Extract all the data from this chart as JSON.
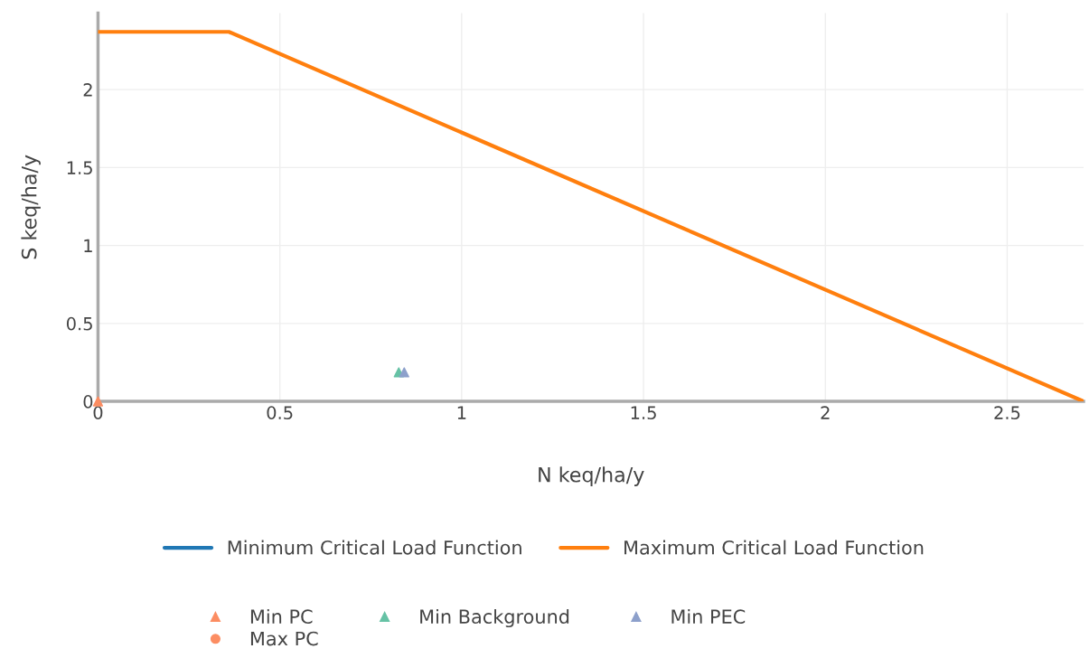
{
  "chart_data": {
    "type": "line",
    "xlabel": "N keq/ha/y",
    "ylabel": "S keq/ha/y",
    "xlim": [
      0,
      2.71
    ],
    "ylim": [
      0,
      2.49
    ],
    "xticks": [
      0,
      0.5,
      1,
      1.5,
      2,
      2.5
    ],
    "yticks": [
      0,
      0.5,
      1,
      1.5,
      2
    ],
    "grid": true,
    "legend": "bottom",
    "series": [
      {
        "name": "Minimum Critical Load Function",
        "color": "#1f77b4"
      },
      {
        "name": "Maximum Critical Load Function",
        "color": "#ff7f0e",
        "x": [
          0,
          0.36,
          2.71
        ],
        "values": [
          2.37,
          2.37,
          0
        ]
      },
      {
        "name": "Min PC",
        "type": "scatter",
        "marker": "triangle",
        "color": "#fc8d62",
        "x": [
          0
        ],
        "values": [
          0
        ]
      },
      {
        "name": "Min Background",
        "type": "scatter",
        "marker": "triangle",
        "color": "#66c2a5",
        "x": [
          0.827
        ],
        "values": [
          0.186
        ]
      },
      {
        "name": "Min PEC",
        "type": "scatter",
        "marker": "triangle",
        "color": "#8da0cb",
        "x": [
          0.842
        ],
        "values": [
          0.186
        ]
      },
      {
        "name": "Max PC",
        "type": "scatter",
        "marker": "circle",
        "color": "#fc8d62"
      }
    ]
  }
}
